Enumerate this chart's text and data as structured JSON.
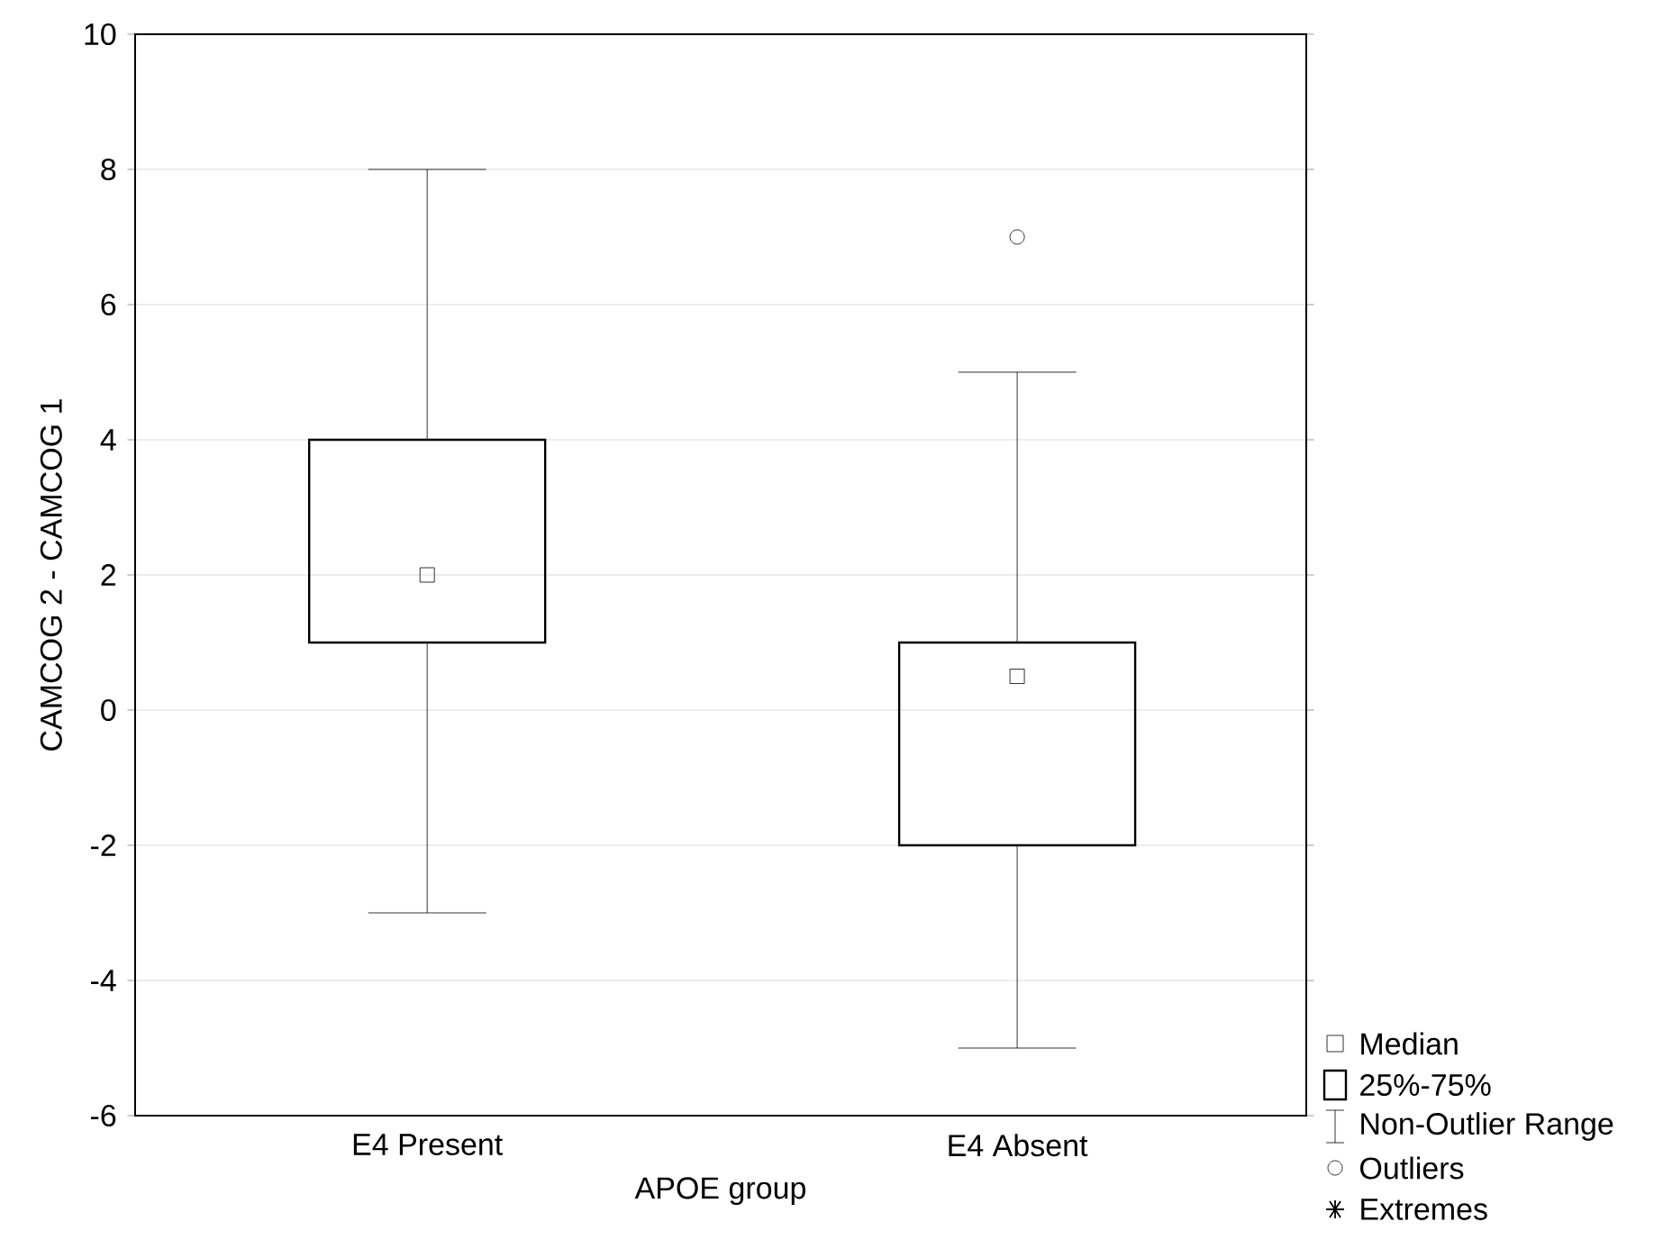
{
  "chart_data": {
    "type": "box",
    "xlabel": "APOE group",
    "ylabel": "CAMCOG 2 - CAMCOG 1",
    "categories": [
      "E4 Present",
      "E4 Absent"
    ],
    "boxes": [
      {
        "low": -3,
        "q1": 1,
        "median": 2,
        "q3": 4,
        "high": 8
      },
      {
        "low": -5,
        "q1": -2,
        "median": 0.5,
        "q3": 1,
        "high": 5,
        "outliers": [
          7
        ]
      }
    ],
    "ylim": [
      -6,
      10
    ],
    "yticks": [
      -6,
      -4,
      -2,
      0,
      2,
      4,
      6,
      8,
      10
    ],
    "grid": "y",
    "annotations": [
      "Median",
      "25%-75%",
      "Non-Outlier Range",
      "Outliers",
      "Extremes"
    ]
  }
}
